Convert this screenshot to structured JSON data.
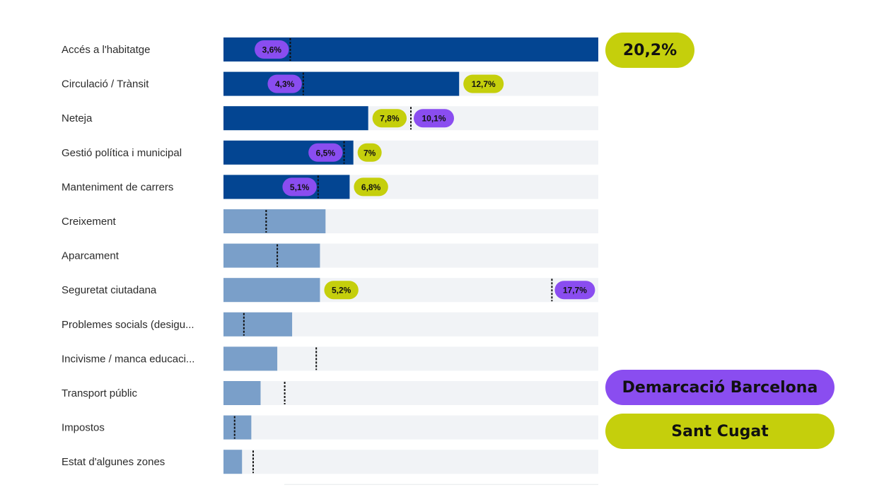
{
  "chart_data": {
    "type": "bar",
    "orientation": "horizontal",
    "xlim": [
      0,
      20.2
    ],
    "grid": false,
    "categories": [
      "Accés a l'habitatge",
      "Circulació / Trànsit",
      "Neteja",
      "Gestió política i municipal",
      "Manteniment de carrers",
      "Creixement",
      "Aparcament",
      "Seguretat ciutadana",
      "Problemes socials (desigu...",
      "Incivisme / manca educaci...",
      "Transport públic",
      "Impostos",
      "Estat d'algunes zones"
    ],
    "series": [
      {
        "name": "Sant Cugat",
        "color": "#c5cf0c",
        "values": [
          20.2,
          12.7,
          7.8,
          7.0,
          6.8,
          5.5,
          5.2,
          5.2,
          3.7,
          2.9,
          2.0,
          1.5,
          1.0
        ],
        "labels": [
          "20,2%",
          "12,7%",
          "7,8%",
          "7%",
          "6,8%",
          "",
          "",
          "5,2%",
          "",
          "",
          "",
          "",
          ""
        ]
      },
      {
        "name": "Demarcació Barcelona",
        "color": "#8a4df0",
        "values": [
          3.6,
          4.3,
          10.1,
          6.5,
          5.1,
          2.3,
          2.9,
          17.7,
          1.1,
          5.0,
          3.3,
          0.6,
          1.6
        ],
        "labels": [
          "3,6%",
          "4,3%",
          "10,1%",
          "6,5%",
          "5,1%",
          "",
          "",
          "17,7%",
          "",
          "",
          "",
          "",
          ""
        ]
      }
    ],
    "bar_colors": {
      "highlight": "#034592",
      "regular": "#7a9fc9",
      "track": "#f1f3f6"
    },
    "highlighted_count": 5,
    "legend_position": "bottom-right"
  },
  "legend": {
    "barcelona": "Demarcació Barcelona",
    "santcugat": "Sant Cugat"
  },
  "callout": {
    "top_value": "20,2%"
  }
}
